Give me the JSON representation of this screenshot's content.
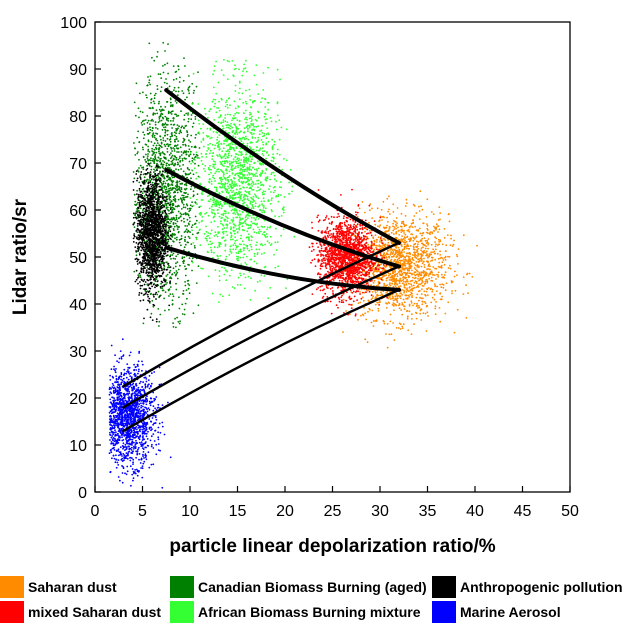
{
  "chart_data": {
    "type": "scatter",
    "xlabel": "particle linear depolarization ratio/%",
    "ylabel": "Lidar ratio/sr",
    "xlim": [
      0,
      50
    ],
    "ylim": [
      0,
      100
    ],
    "x_ticks": [
      "0",
      "5",
      "10",
      "15",
      "20",
      "25",
      "30",
      "35",
      "40",
      "45",
      "50"
    ],
    "y_ticks": [
      "0",
      "10",
      "20",
      "30",
      "40",
      "50",
      "60",
      "70",
      "80",
      "90",
      "100"
    ],
    "grid": false,
    "legend_position": "bottom",
    "series": [
      {
        "name": "Saharan dust",
        "color": "#ff8c00",
        "center": [
          32,
          48
        ],
        "spread": [
          2.6,
          5.5
        ],
        "x_range": [
          26,
          44
        ],
        "y_range": [
          30,
          65
        ]
      },
      {
        "name": "mixed Saharan dust",
        "color": "#ff0000",
        "center": [
          26.5,
          50
        ],
        "spread": [
          1.5,
          4
        ],
        "x_range": [
          22.5,
          31
        ],
        "y_range": [
          32,
          65
        ]
      },
      {
        "name": "Canadian Biomass Burning (aged)",
        "color": "#008000",
        "center": [
          7.5,
          64
        ],
        "spread": [
          1.8,
          12
        ],
        "x_range": [
          4,
          11
        ],
        "y_range": [
          35,
          96
        ]
      },
      {
        "name": "African Biomass Burning mixture",
        "color": "#33ff33",
        "center": [
          15,
          66
        ],
        "spread": [
          2.2,
          10
        ],
        "x_range": [
          10,
          21
        ],
        "y_range": [
          40,
          92
        ]
      },
      {
        "name": "Anthropogenic pollution",
        "color": "#000000",
        "center": [
          6,
          55
        ],
        "spread": [
          0.8,
          6
        ],
        "x_range": [
          4,
          8
        ],
        "y_range": [
          35,
          70
        ]
      },
      {
        "name": "Marine Aerosol",
        "color": "#0000ff",
        "center": [
          3.5,
          16
        ],
        "spread": [
          1.4,
          5
        ],
        "x_range": [
          1.5,
          8.5
        ],
        "y_range": [
          0,
          33
        ]
      }
    ],
    "mixing_lines": [
      {
        "from": [
          7.5,
          85.5
        ],
        "to": [
          32,
          53
        ]
      },
      {
        "from": [
          7.5,
          68.5
        ],
        "to": [
          32,
          48
        ]
      },
      {
        "from": [
          7.5,
          52
        ],
        "to": [
          32,
          43
        ]
      },
      {
        "from": [
          3,
          22.5
        ],
        "to": [
          32,
          53
        ]
      },
      {
        "from": [
          3,
          18
        ],
        "to": [
          32,
          48
        ]
      },
      {
        "from": [
          3,
          13
        ],
        "to": [
          32,
          43
        ]
      }
    ]
  },
  "legend": [
    {
      "label": "Saharan dust",
      "color": "#ff8c00"
    },
    {
      "label": "Canadian Biomass Burning (aged)",
      "color": "#008000"
    },
    {
      "label": "Anthropogenic pollution",
      "color": "#000000"
    },
    {
      "label": "mixed Saharan dust",
      "color": "#ff0000"
    },
    {
      "label": "African Biomass Burning mixture",
      "color": "#33ff33"
    },
    {
      "label": "Marine Aerosol",
      "color": "#0000ff"
    }
  ]
}
